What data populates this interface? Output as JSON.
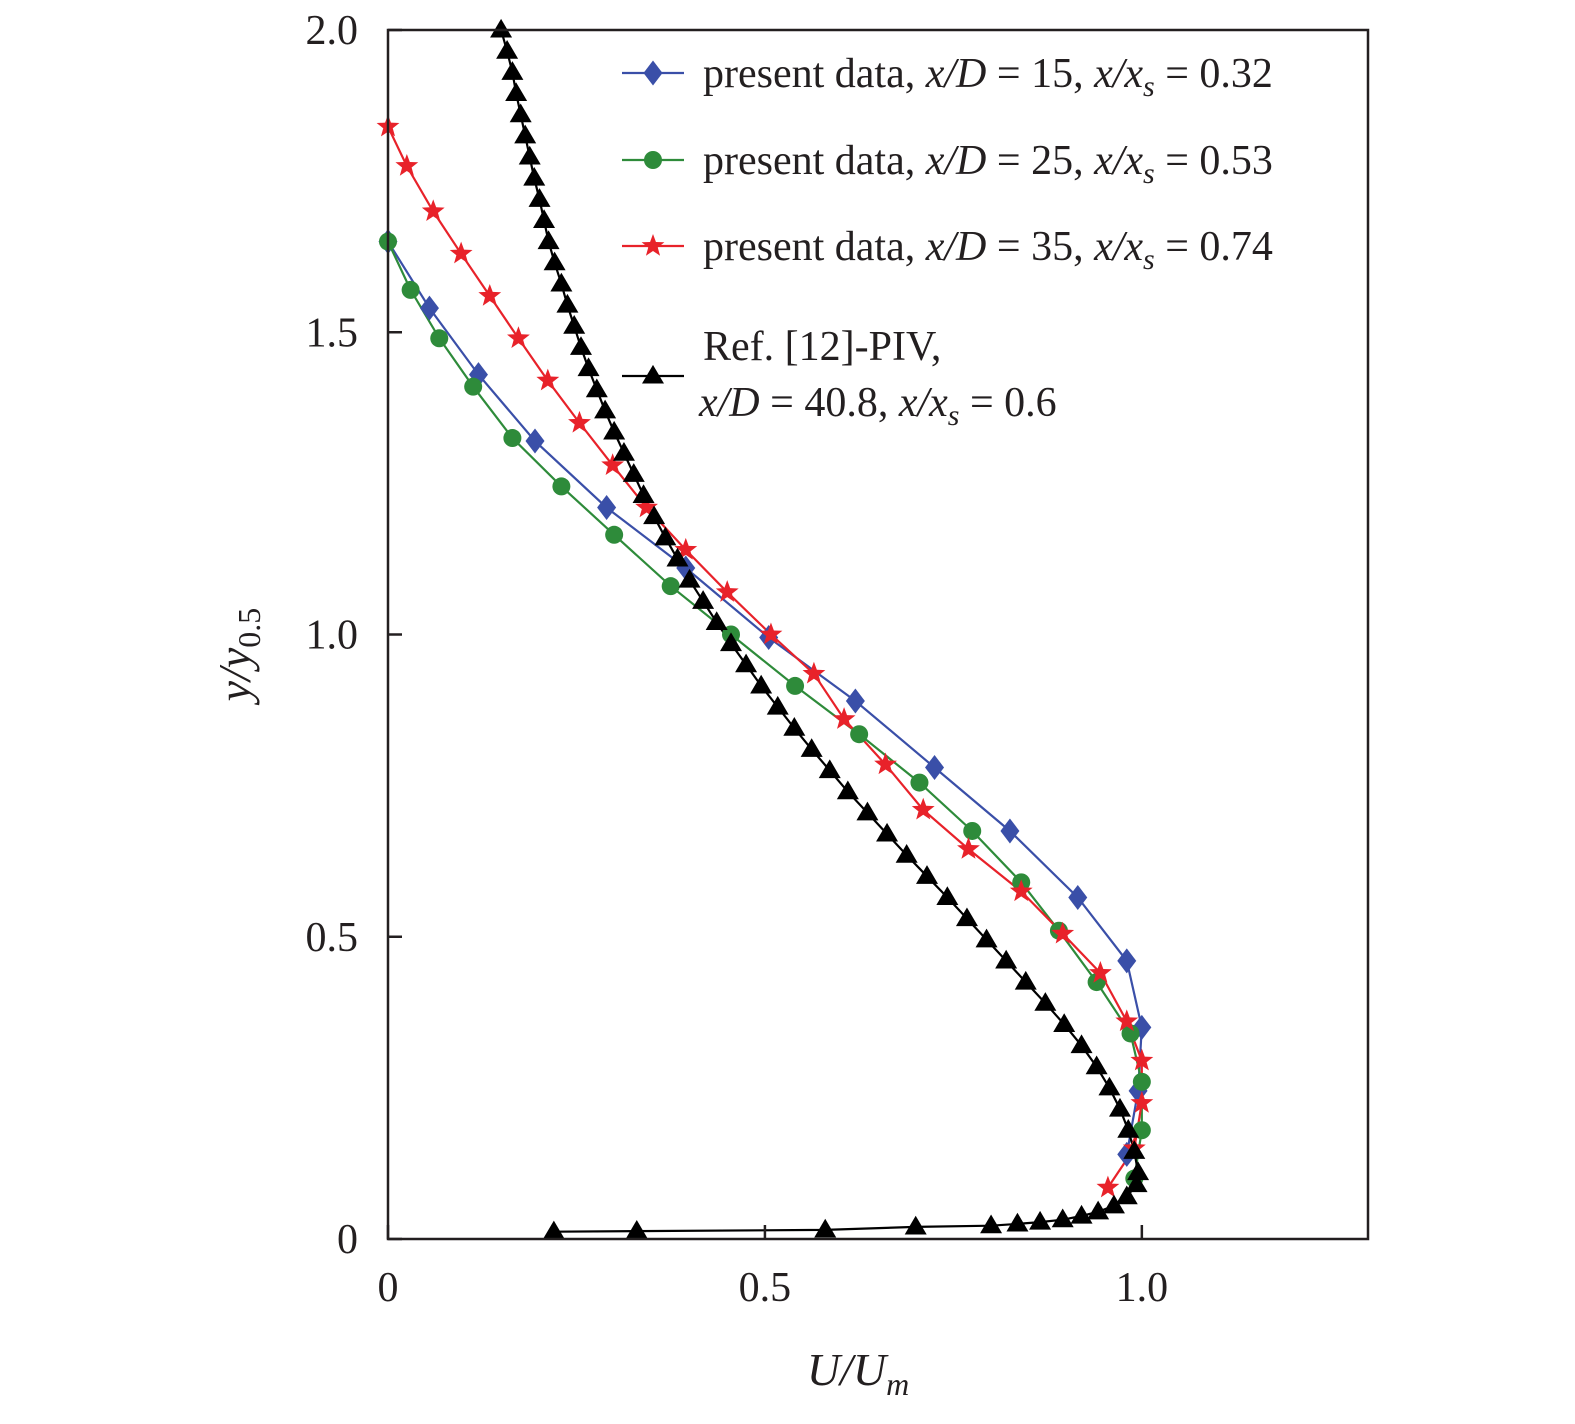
{
  "chart_data": {
    "type": "line",
    "xlabel": {
      "main": "U/U",
      "sub": "m"
    },
    "ylabel": {
      "main": "y/y",
      "sub": "0.5"
    },
    "xlim": [
      0,
      1.3
    ],
    "ylim": [
      0,
      2.0
    ],
    "xticks": [
      {
        "value": 0,
        "label": "0"
      },
      {
        "value": 0.5,
        "label": "0.5"
      },
      {
        "value": 1.0,
        "label": "1.0"
      }
    ],
    "yticks": [
      {
        "value": 0,
        "label": "0"
      },
      {
        "value": 0.5,
        "label": "0.5"
      },
      {
        "value": 1.0,
        "label": "1.0"
      },
      {
        "value": 1.5,
        "label": "1.5"
      },
      {
        "value": 2.0,
        "label": "2.0"
      }
    ],
    "legend_position": "top-right",
    "series": [
      {
        "id": "xd15",
        "name": "present data, x/D = 15, x/xs = 0.32",
        "legend": {
          "prefix": "present data, ",
          "a": "x/D",
          "b": " = 15, ",
          "c": "x/x",
          "sub": "s",
          "d": " = 0.32"
        },
        "color": "#3a4fa8",
        "marker": "diamond",
        "points": [
          [
            0.0,
            1.65
          ],
          [
            0.055,
            1.54
          ],
          [
            0.12,
            1.43
          ],
          [
            0.195,
            1.32
          ],
          [
            0.29,
            1.21
          ],
          [
            0.395,
            1.11
          ],
          [
            0.505,
            0.995
          ],
          [
            0.62,
            0.89
          ],
          [
            0.725,
            0.78
          ],
          [
            0.825,
            0.675
          ],
          [
            0.915,
            0.565
          ],
          [
            0.98,
            0.46
          ],
          [
            1.0,
            0.35
          ],
          [
            0.995,
            0.245
          ],
          [
            0.98,
            0.14
          ]
        ]
      },
      {
        "id": "xd25",
        "name": "present data, x/D = 25, x/xs = 0.53",
        "legend": {
          "prefix": "present data, ",
          "a": "x/D",
          "b": " = 25, ",
          "c": "x/x",
          "sub": "s",
          "d": " = 0.53"
        },
        "color": "#2e8b3a",
        "marker": "circle",
        "points": [
          [
            0.0,
            1.65
          ],
          [
            0.03,
            1.57
          ],
          [
            0.068,
            1.49
          ],
          [
            0.113,
            1.41
          ],
          [
            0.165,
            1.325
          ],
          [
            0.23,
            1.245
          ],
          [
            0.3,
            1.165
          ],
          [
            0.375,
            1.08
          ],
          [
            0.455,
            1.0
          ],
          [
            0.54,
            0.915
          ],
          [
            0.625,
            0.835
          ],
          [
            0.705,
            0.755
          ],
          [
            0.775,
            0.675
          ],
          [
            0.84,
            0.59
          ],
          [
            0.89,
            0.51
          ],
          [
            0.94,
            0.425
          ],
          [
            0.985,
            0.34
          ],
          [
            1.0,
            0.26
          ],
          [
            1.0,
            0.18
          ],
          [
            0.99,
            0.1
          ]
        ]
      },
      {
        "id": "xd35",
        "name": "present data, x/D = 35, x/xs = 0.74",
        "legend": {
          "prefix": "present data, ",
          "a": "x/D",
          "b": " = 35, ",
          "c": "x/x",
          "sub": "s",
          "d": " = 0.74"
        },
        "color": "#e8222a",
        "marker": "star",
        "points": [
          [
            0.0,
            1.84
          ],
          [
            0.025,
            1.775
          ],
          [
            0.06,
            1.7
          ],
          [
            0.097,
            1.63
          ],
          [
            0.135,
            1.56
          ],
          [
            0.173,
            1.49
          ],
          [
            0.212,
            1.42
          ],
          [
            0.254,
            1.35
          ],
          [
            0.298,
            1.28
          ],
          [
            0.343,
            1.21
          ],
          [
            0.395,
            1.14
          ],
          [
            0.45,
            1.07
          ],
          [
            0.508,
            1.0
          ],
          [
            0.565,
            0.935
          ],
          [
            0.605,
            0.86
          ],
          [
            0.66,
            0.785
          ],
          [
            0.71,
            0.71
          ],
          [
            0.77,
            0.645
          ],
          [
            0.84,
            0.575
          ],
          [
            0.895,
            0.505
          ],
          [
            0.945,
            0.44
          ],
          [
            0.98,
            0.36
          ],
          [
            1.0,
            0.295
          ],
          [
            1.0,
            0.225
          ],
          [
            0.99,
            0.15
          ],
          [
            0.955,
            0.085
          ]
        ]
      },
      {
        "id": "piv",
        "name": "Ref. [12]-PIV, x/D = 40.8, x/xs = 0.6",
        "legend": {
          "line1": "Ref. [12]-PIV,",
          "a": "x/D",
          "b": " = 40.8, ",
          "c": "x/x",
          "sub": "s",
          "d": " = 0.6"
        },
        "color": "#000000",
        "marker": "triangle",
        "points": [
          [
            0.15,
            2.0
          ],
          [
            0.158,
            1.965
          ],
          [
            0.165,
            1.93
          ],
          [
            0.17,
            1.895
          ],
          [
            0.176,
            1.86
          ],
          [
            0.182,
            1.825
          ],
          [
            0.188,
            1.79
          ],
          [
            0.194,
            1.755
          ],
          [
            0.201,
            1.72
          ],
          [
            0.207,
            1.685
          ],
          [
            0.213,
            1.65
          ],
          [
            0.221,
            1.615
          ],
          [
            0.23,
            1.58
          ],
          [
            0.238,
            1.545
          ],
          [
            0.247,
            1.51
          ],
          [
            0.256,
            1.475
          ],
          [
            0.266,
            1.44
          ],
          [
            0.277,
            1.405
          ],
          [
            0.288,
            1.37
          ],
          [
            0.3,
            1.335
          ],
          [
            0.313,
            1.3
          ],
          [
            0.326,
            1.265
          ],
          [
            0.339,
            1.23
          ],
          [
            0.353,
            1.195
          ],
          [
            0.368,
            1.16
          ],
          [
            0.384,
            1.125
          ],
          [
            0.4,
            1.09
          ],
          [
            0.418,
            1.055
          ],
          [
            0.436,
            1.02
          ],
          [
            0.455,
            0.985
          ],
          [
            0.475,
            0.95
          ],
          [
            0.495,
            0.915
          ],
          [
            0.517,
            0.88
          ],
          [
            0.539,
            0.845
          ],
          [
            0.562,
            0.81
          ],
          [
            0.586,
            0.775
          ],
          [
            0.61,
            0.74
          ],
          [
            0.636,
            0.705
          ],
          [
            0.662,
            0.67
          ],
          [
            0.688,
            0.635
          ],
          [
            0.715,
            0.6
          ],
          [
            0.742,
            0.565
          ],
          [
            0.768,
            0.53
          ],
          [
            0.794,
            0.495
          ],
          [
            0.82,
            0.46
          ],
          [
            0.846,
            0.425
          ],
          [
            0.872,
            0.39
          ],
          [
            0.897,
            0.355
          ],
          [
            0.92,
            0.32
          ],
          [
            0.94,
            0.285
          ],
          [
            0.957,
            0.25
          ],
          [
            0.971,
            0.215
          ],
          [
            0.982,
            0.18
          ],
          [
            0.99,
            0.145
          ],
          [
            0.995,
            0.11
          ],
          [
            0.993,
            0.09
          ],
          [
            0.98,
            0.07
          ],
          [
            0.963,
            0.055
          ],
          [
            0.942,
            0.045
          ],
          [
            0.92,
            0.038
          ],
          [
            0.895,
            0.032
          ],
          [
            0.865,
            0.028
          ],
          [
            0.835,
            0.025
          ],
          [
            0.8,
            0.022
          ],
          [
            0.7,
            0.02
          ],
          [
            0.58,
            0.015
          ],
          [
            0.33,
            0.013
          ],
          [
            0.22,
            0.012
          ]
        ]
      }
    ]
  }
}
